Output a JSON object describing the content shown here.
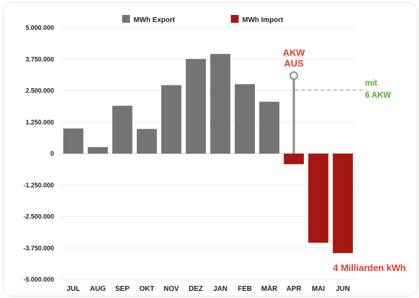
{
  "chart_data": {
    "type": "bar",
    "categories": [
      "JUL",
      "AUG",
      "SEP",
      "OKT",
      "NOV",
      "DEZ",
      "JAN",
      "FEB",
      "MÄR",
      "APR",
      "MAI",
      "JUN"
    ],
    "series": [
      {
        "name": "MWh Export",
        "color": "#747474",
        "values": [
          1000000,
          260000,
          1900000,
          980000,
          2720000,
          3760000,
          3960000,
          2760000,
          2060000,
          0,
          0,
          0
        ]
      },
      {
        "name": "MWh Import",
        "color": "#a51712",
        "values": [
          0,
          0,
          0,
          0,
          0,
          0,
          0,
          0,
          0,
          -420000,
          -3540000,
          -3950000
        ]
      }
    ],
    "ylim": [
      -5000000,
      5000000
    ],
    "yticks": [
      5000000,
      3750000,
      2500000,
      1250000,
      0,
      -1250000,
      -2500000,
      -3750000,
      -5000000
    ],
    "ytick_labels": [
      "5.000.000",
      "3.750.000",
      "2.500.000",
      "1.250.000",
      "0",
      "-1.250.000",
      "-2.500.000",
      "-3.750.000",
      "-5.000.000"
    ],
    "grid": true,
    "legend_position": "top-center",
    "annotations": {
      "akw_aus": {
        "lines": [
          "AKW",
          "AUS"
        ],
        "category": "APR",
        "value": 3100000,
        "color": "#e03a2a"
      },
      "mit_6_akw": {
        "lines": [
          "mit",
          "6 AKW"
        ],
        "value": 2500000,
        "color": "#5aa832"
      },
      "milliarden": {
        "text": "4 Milliarden kWh",
        "color": "#e03a2a"
      }
    }
  }
}
